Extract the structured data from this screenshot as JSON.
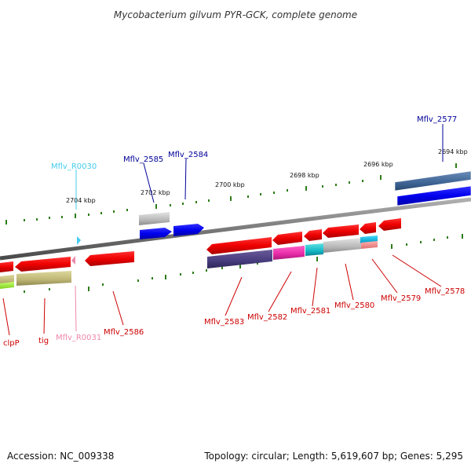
{
  "title": "Mycobacterium gilvum PYR-GCK, complete genome",
  "footer": {
    "accession": "Accession: NC_009338",
    "topology": "Topology: circular; Length: 5,619,607 bp; Genes: 5,295"
  },
  "scale_labels": [
    "2704 kbp",
    "2702 kbp",
    "2700 kbp",
    "2698 kbp",
    "2696 kbp",
    "2694 kbp"
  ],
  "gene_labels": {
    "mflv_r0030": "Mflv_R0030",
    "mflv_2585": "Mflv_2585",
    "mflv_2584": "Mflv_2584",
    "mflv_2577": "Mflv_2577",
    "clpp": "clpP",
    "tig": "tig",
    "mflv_r0031": "Mflv_R0031",
    "mflv_2586": "Mflv_2586",
    "mflv_2583": "Mflv_2583",
    "mflv_2582": "Mflv_2582",
    "mflv_2581": "Mflv_2581",
    "mflv_2580": "Mflv_2580",
    "mflv_2579": "Mflv_2579",
    "mflv_2578": "Mflv_2578"
  },
  "colors": {
    "cds_forward": "#0000ee",
    "cds_reverse": "#ee0000",
    "trna": "#44ccee",
    "trna_reverse": "#ee88aa",
    "label_forward": "#000099",
    "label_reverse": "#cc0000",
    "backbone": "#7a7a7a",
    "tick": "#2e7d1a"
  }
}
